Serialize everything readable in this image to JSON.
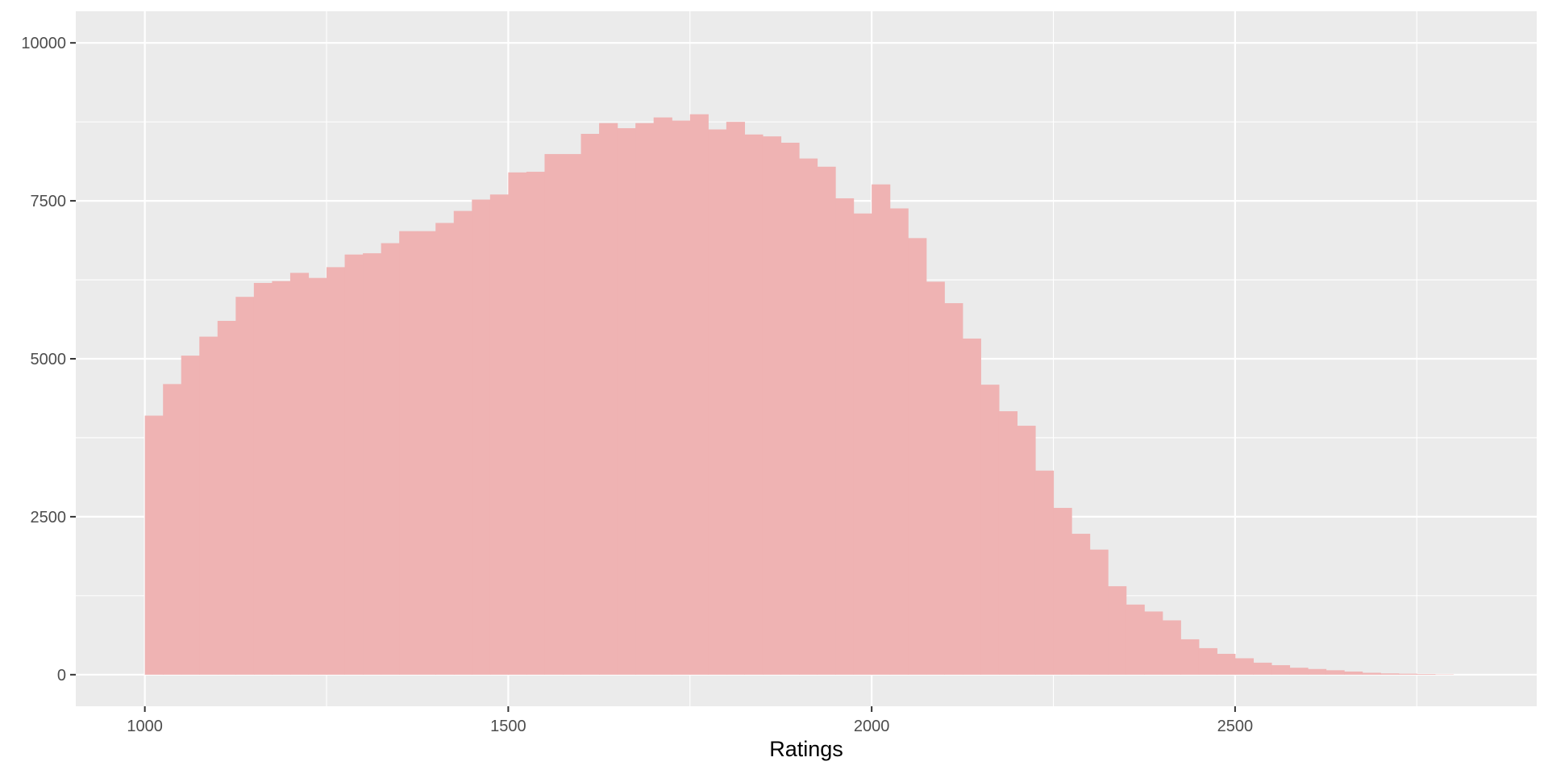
{
  "chart_data": {
    "type": "bar",
    "xlabel": "Ratings",
    "ylabel": "",
    "xlim": [
      905,
      2915
    ],
    "ylim": [
      -500,
      10500
    ],
    "x_ticks": [
      1000,
      1500,
      2000,
      2500
    ],
    "y_ticks": [
      0,
      2500,
      5000,
      7500,
      10000
    ],
    "x_tick_labels": [
      "1000",
      "1500",
      "2000",
      "2500"
    ],
    "y_tick_labels": [
      "0",
      "2500",
      "5000",
      "7500",
      "10000"
    ],
    "grid": true,
    "legend": "none",
    "bin_start": 1000,
    "bin_width": 25,
    "values": [
      4100,
      4600,
      5050,
      5350,
      5600,
      5980,
      6200,
      6230,
      6360,
      6280,
      6450,
      6650,
      6670,
      6830,
      7020,
      7020,
      7150,
      7340,
      7520,
      7600,
      7950,
      7960,
      8240,
      8240,
      8560,
      8730,
      8650,
      8730,
      8820,
      8770,
      8870,
      8630,
      8750,
      8550,
      8520,
      8420,
      8170,
      8040,
      7540,
      7300,
      7760,
      7380,
      6910,
      6220,
      5880,
      5320,
      4590,
      4170,
      3940,
      3230,
      2640,
      2230,
      1980,
      1400,
      1110,
      1000,
      860,
      560,
      420,
      330,
      260,
      190,
      150,
      110,
      90,
      70,
      50,
      30,
      20,
      15,
      10,
      5
    ]
  },
  "colors": {
    "panel_background": "#ebebeb",
    "gridline": "#ffffff",
    "bar_fill": "#efb3b3"
  }
}
